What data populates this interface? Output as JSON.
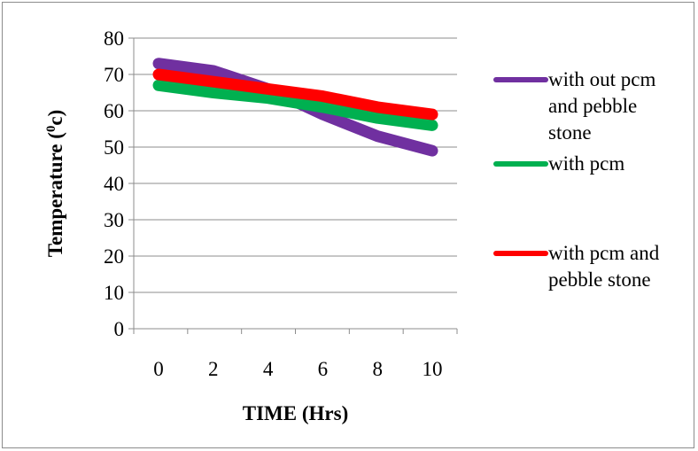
{
  "chart_data": {
    "type": "line",
    "title": "",
    "xlabel": "TIME (Hrs)",
    "ylabel_main": "Temperature (",
    "ylabel_sup": "0",
    "ylabel_tail": "c)",
    "x": [
      0,
      2,
      4,
      6,
      8,
      10
    ],
    "xlim": [
      0,
      10
    ],
    "ylim": [
      0,
      80
    ],
    "yticks": [
      0,
      10,
      20,
      30,
      40,
      50,
      60,
      70,
      80
    ],
    "grid": "horizontal",
    "legend_position": "right",
    "series": [
      {
        "name_lines": [
          "with out pcm",
          "and pebble",
          "stone"
        ],
        "color": "#7030A0",
        "values": [
          73,
          71,
          66,
          59,
          53,
          49
        ]
      },
      {
        "name_lines": [
          "with pcm"
        ],
        "color": "#00B050",
        "values": [
          67,
          65,
          63.5,
          61,
          58,
          56
        ]
      },
      {
        "name_lines": [
          "with pcm and",
          "pebble stone"
        ],
        "color": "#FF0000",
        "values": [
          70,
          68,
          66,
          64,
          61,
          59
        ]
      }
    ]
  }
}
